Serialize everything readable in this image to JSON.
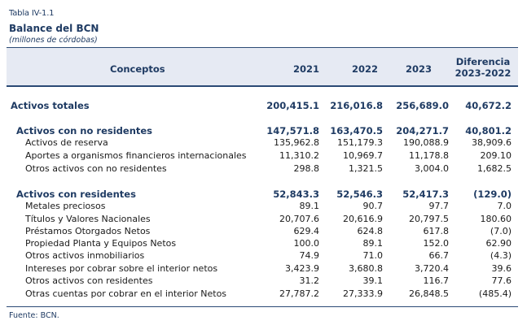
{
  "caption": "Tabla IV-1.1",
  "title": "Balance del BCN",
  "units": "(millones de córdobas)",
  "header": {
    "concept": "Conceptos",
    "year1": "2021",
    "year2": "2022",
    "year3": "2023",
    "diff_line1": "Diferencia",
    "diff_line2": "2023-2022"
  },
  "rows": [
    {
      "label": "Activos totales",
      "v2021": "200,415.1",
      "v2022": "216,016.8",
      "v2023": "256,689.0",
      "diff": "40,672.2"
    },
    {
      "label": "Activos con  no residentes",
      "v2021": "147,571.8",
      "v2022": "163,470.5",
      "v2023": "204,271.7",
      "diff": "40,801.2"
    },
    {
      "label": "Activos de reserva",
      "v2021": "135,962.8",
      "v2022": "151,179.3",
      "v2023": "190,088.9",
      "diff": "38,909.6"
    },
    {
      "label": "Aportes a organismos financieros internacionales",
      "v2021": "11,310.2",
      "v2022": "10,969.7",
      "v2023": "11,178.8",
      "diff": "209.10"
    },
    {
      "label": "Otros activos con no residentes",
      "v2021": "298.8",
      "v2022": "1,321.5",
      "v2023": "3,004.0",
      "diff": "1,682.5"
    },
    {
      "label": "Activos con residentes",
      "v2021": "52,843.3",
      "v2022": "52,546.3",
      "v2023": "52,417.3",
      "diff": "(129.0)"
    },
    {
      "label": "Metales preciosos",
      "v2021": "89.1",
      "v2022": "90.7",
      "v2023": "97.7",
      "diff": "7.0"
    },
    {
      "label": "Títulos y Valores Nacionales",
      "v2021": "20,707.6",
      "v2022": "20,616.9",
      "v2023": "20,797.5",
      "diff": "180.60"
    },
    {
      "label": "Préstamos Otorgados Netos",
      "v2021": "629.4",
      "v2022": "624.8",
      "v2023": "617.8",
      "diff": "(7.0)"
    },
    {
      "label": "Propiedad Planta y Equipos Netos",
      "v2021": "100.0",
      "v2022": "89.1",
      "v2023": "152.0",
      "diff": "62.90"
    },
    {
      "label": "Otros activos inmobiliarios",
      "v2021": "74.9",
      "v2022": "71.0",
      "v2023": "66.7",
      "diff": "(4.3)"
    },
    {
      "label": "Intereses por cobrar sobre el interior netos",
      "v2021": "3,423.9",
      "v2022": "3,680.8",
      "v2023": "3,720.4",
      "diff": "39.6"
    },
    {
      "label": "Otros activos con residentes",
      "v2021": "31.2",
      "v2022": "39.1",
      "v2023": "116.7",
      "diff": "77.6"
    },
    {
      "label": "Otras cuentas por cobrar en el interior Netos",
      "v2021": "27,787.2",
      "v2022": "27,333.9",
      "v2023": "26,848.5",
      "diff": "(485.4)"
    }
  ],
  "source": "Fuente: BCN."
}
